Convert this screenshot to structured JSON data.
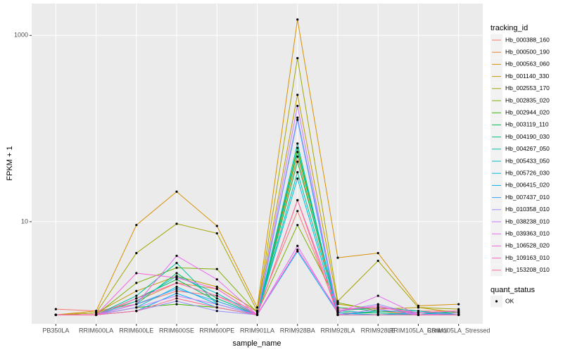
{
  "chart_data": {
    "type": "line",
    "x_label": "sample_name",
    "y_label": "FPKM + 1",
    "legend_title": "tracking_id",
    "shape_legend_title": "quant_status",
    "shape_legend_items": [
      "OK"
    ],
    "log_y": true,
    "grid": true,
    "legend_position": "right",
    "point_color": "#000000",
    "ylim": [
      0.8,
      2200
    ],
    "yticks": [
      10,
      1000
    ],
    "categories": [
      "PB350LA",
      "RRIM600LA",
      "RRIM600LE",
      "RRIM600SE",
      "RRIM600PE",
      "RRIM901LA",
      "RRIM928BA",
      "RRIM928LA",
      "RRIM928LE",
      "RRIM105LA_Control",
      "RRIM105LA_Stressed"
    ],
    "series": [
      {
        "name": "Hb_000388_160",
        "color": "#F8766D",
        "values": [
          1.15,
          1.1,
          1.3,
          1.8,
          1.6,
          1.1,
          13,
          1.1,
          1.2,
          1.1,
          1.1
        ]
      },
      {
        "name": "Hb_000500_190",
        "color": "#EA8331",
        "values": [
          1.0,
          1.05,
          1.4,
          2.2,
          1.9,
          1.0,
          50,
          1.0,
          1.1,
          1.0,
          1.05
        ]
      },
      {
        "name": "Hb_000563_060",
        "color": "#D89000",
        "values": [
          1.0,
          1.1,
          9.2,
          21,
          9,
          1.2,
          1480,
          4.1,
          4.6,
          1.25,
          1.3
        ]
      },
      {
        "name": "Hb_001140_330",
        "color": "#C09B00",
        "values": [
          1.0,
          1.05,
          1.8,
          2.6,
          2.0,
          1.1,
          230,
          1.3,
          1.15,
          1.2,
          1.05
        ]
      },
      {
        "name": "Hb_002553_170",
        "color": "#A3A500",
        "values": [
          1.0,
          1.05,
          4.6,
          9.5,
          7.5,
          1.1,
          570,
          1.4,
          3.8,
          1.2,
          1.15
        ]
      },
      {
        "name": "Hb_002835_020",
        "color": "#7CAE00",
        "values": [
          1.0,
          1.0,
          2.2,
          3.2,
          3.1,
          1.05,
          9.2,
          1.35,
          1.1,
          1.05,
          1.0
        ]
      },
      {
        "name": "Hb_002944_020",
        "color": "#39B600",
        "values": [
          1.0,
          1.0,
          1.2,
          1.3,
          1.2,
          1.0,
          62,
          1.05,
          1.05,
          1.0,
          1.0
        ]
      },
      {
        "name": "Hb_003119_110",
        "color": "#00BB4E",
        "values": [
          1.0,
          1.0,
          1.5,
          2.4,
          1.4,
          1.0,
          44,
          1.2,
          1.1,
          1.05,
          1.05
        ]
      },
      {
        "name": "Hb_004190_030",
        "color": "#00BF7D",
        "values": [
          1.0,
          1.0,
          1.3,
          2.8,
          1.5,
          1.0,
          56,
          1.1,
          1.2,
          1.1,
          1.0
        ]
      },
      {
        "name": "Hb_004267_050",
        "color": "#00C1A3",
        "values": [
          1.0,
          1.0,
          1.6,
          3.6,
          1.3,
          1.0,
          34,
          1.1,
          1.05,
          1.0,
          1.1
        ]
      },
      {
        "name": "Hb_005433_050",
        "color": "#00BFC4",
        "values": [
          1.0,
          1.0,
          1.4,
          2.6,
          1.7,
          1.0,
          69,
          1.0,
          1.1,
          1.1,
          1.0
        ]
      },
      {
        "name": "Hb_005726_030",
        "color": "#00BAE0",
        "values": [
          1.0,
          1.0,
          1.2,
          2.0,
          1.3,
          1.0,
          29,
          1.0,
          1.0,
          1.0,
          1.0
        ]
      },
      {
        "name": "Hb_006415_020",
        "color": "#00B0F6",
        "values": [
          1.0,
          1.0,
          1.1,
          1.7,
          1.2,
          1.0,
          4.8,
          1.05,
          1.0,
          1.05,
          1.0
        ]
      },
      {
        "name": "Hb_007437_010",
        "color": "#35A2FF",
        "values": [
          1.0,
          1.0,
          1.3,
          1.9,
          1.4,
          1.0,
          124,
          1.0,
          1.0,
          1.0,
          1.0
        ]
      },
      {
        "name": "Hb_010358_010",
        "color": "#9590FF",
        "values": [
          1.0,
          1.0,
          1.1,
          1.4,
          1.1,
          1.0,
          131,
          1.1,
          1.3,
          1.0,
          1.05
        ]
      },
      {
        "name": "Hb_038238_010",
        "color": "#C77CFF",
        "values": [
          1.0,
          1.0,
          1.2,
          1.6,
          1.3,
          1.0,
          175,
          1.0,
          1.15,
          1.0,
          1.0
        ]
      },
      {
        "name": "Hb_039363_010",
        "color": "#E76BF3",
        "values": [
          1.0,
          1.0,
          1.3,
          4.3,
          2.4,
          1.0,
          5.5,
          1.05,
          1.6,
          1.0,
          1.0
        ]
      },
      {
        "name": "Hb_106528_020",
        "color": "#FA62DB",
        "values": [
          1.0,
          1.0,
          2.8,
          2.5,
          1.9,
          1.0,
          5.0,
          1.1,
          1.25,
          1.0,
          1.0
        ]
      },
      {
        "name": "Hb_109163_010",
        "color": "#FF62BC",
        "values": [
          1.0,
          1.0,
          1.5,
          2.2,
          1.6,
          1.0,
          17,
          1.15,
          1.2,
          1.05,
          1.1
        ]
      },
      {
        "name": "Hb_153208_010",
        "color": "#FF6C91",
        "values": [
          1.0,
          1.0,
          1.1,
          1.5,
          1.2,
          1.0,
          17,
          1.0,
          1.0,
          1.0,
          1.0
        ]
      }
    ]
  }
}
